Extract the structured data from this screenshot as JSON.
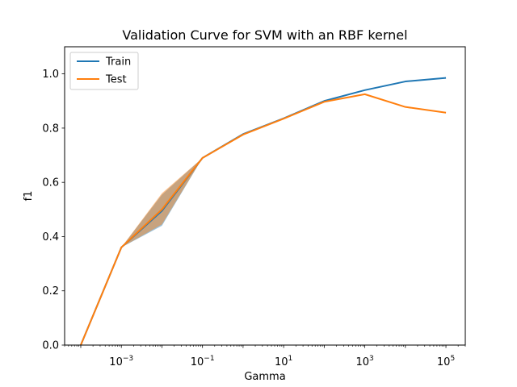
{
  "chart_data": {
    "type": "line",
    "title": "Validation Curve for SVM with an RBF kernel",
    "xlabel": "Gamma",
    "ylabel": "f1",
    "xscale": "log",
    "xlim": [
      4e-05,
      300000
    ],
    "ylim": [
      0,
      1.1
    ],
    "x": [
      0.0001,
      0.001,
      0.01,
      0.1,
      1,
      10,
      100,
      1000,
      10000,
      100000
    ],
    "x_ticks": [
      {
        "value": 0.001,
        "base": "10",
        "exp": "−3"
      },
      {
        "value": 0.1,
        "base": "10",
        "exp": "−1"
      },
      {
        "value": 10,
        "base": "10",
        "exp": "1"
      },
      {
        "value": 1000,
        "base": "10",
        "exp": "3"
      },
      {
        "value": 100000,
        "base": "10",
        "exp": "5"
      }
    ],
    "y_ticks": [
      "0.0",
      "0.2",
      "0.4",
      "0.6",
      "0.8",
      "1.0"
    ],
    "y_tick_values": [
      0,
      0.2,
      0.4,
      0.6,
      0.8,
      1.0
    ],
    "legend_position": "top-left",
    "series": [
      {
        "name": "Train",
        "color": "#1f77b4",
        "values": [
          0.0,
          0.36,
          0.495,
          0.69,
          0.778,
          0.836,
          0.9,
          0.94,
          0.972,
          0.985
        ],
        "band_low": [
          0.0,
          0.36,
          0.44,
          0.69,
          0.776,
          0.834,
          0.898,
          0.938,
          0.97,
          0.983
        ],
        "band_high": [
          0.0,
          0.36,
          0.555,
          0.69,
          0.78,
          0.838,
          0.902,
          0.942,
          0.974,
          0.987
        ]
      },
      {
        "name": "Test",
        "color": "#ff7f0e",
        "values": [
          0.0,
          0.36,
          0.5,
          0.69,
          0.776,
          0.835,
          0.897,
          0.925,
          0.878,
          0.857
        ],
        "band_low": [
          0.0,
          0.36,
          0.445,
          0.69,
          0.774,
          0.833,
          0.895,
          0.923,
          0.876,
          0.855
        ],
        "band_high": [
          0.0,
          0.36,
          0.56,
          0.69,
          0.778,
          0.837,
          0.899,
          0.927,
          0.88,
          0.859
        ]
      }
    ]
  }
}
